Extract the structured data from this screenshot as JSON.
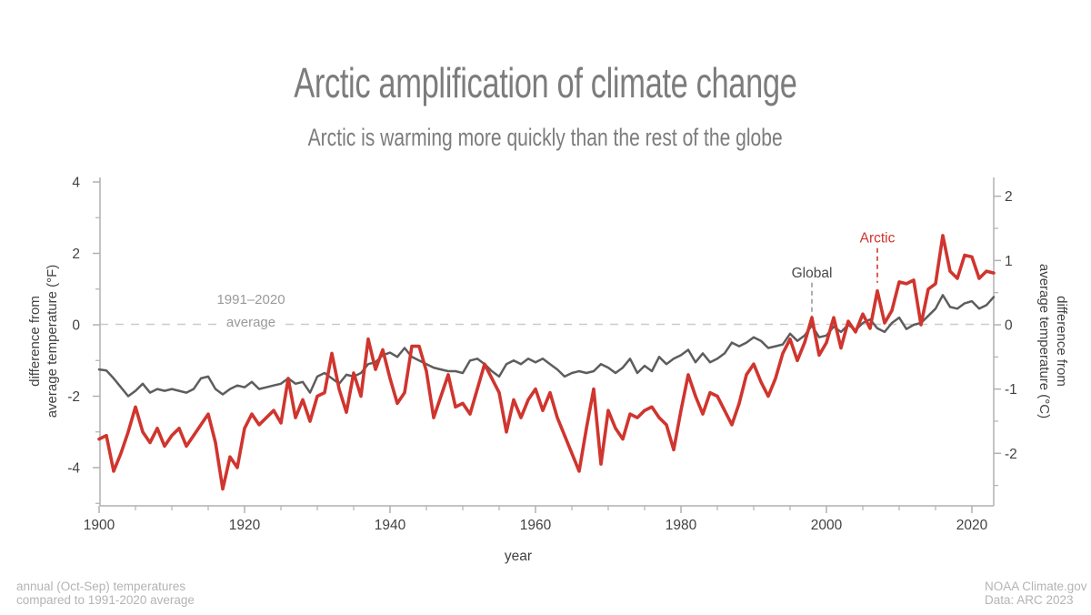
{
  "header": {
    "title": "Arctic amplification of climate change",
    "subtitle": "Arctic is warming more quickly than the rest of the globe"
  },
  "chart_data": {
    "type": "line",
    "title": "Arctic amplification of climate change",
    "subtitle": "Arctic is warming more quickly than the rest of the globe",
    "xlabel": "year",
    "xlim": [
      1900,
      2023
    ],
    "ylim_f": [
      -5.1,
      4.1
    ],
    "ylim_c": [
      -2.8,
      2.3
    ],
    "grid": false,
    "x_ticks": [
      1900,
      1920,
      1940,
      1960,
      1980,
      2000,
      2020
    ],
    "x_minor_step": 5,
    "y_axis_left": {
      "label_line1": "difference from",
      "label_line2": "average temperature (°F)",
      "ticks": [
        4,
        2,
        0,
        -2,
        -4
      ],
      "minor_ticks": [
        3,
        1,
        -1,
        -3,
        -5
      ],
      "unit": "°F"
    },
    "y_axis_right": {
      "label_line1": "difference from",
      "label_line2": "average temperature (°C)",
      "ticks": [
        2,
        1,
        0,
        -1,
        -2
      ],
      "minor_ticks": [
        1.5,
        0.5,
        -0.5,
        -1.5,
        -2.5
      ],
      "unit": "°C"
    },
    "baseline": {
      "value": 0,
      "label_line1": "1991–2020",
      "label_line2": "average"
    },
    "annotations": [
      {
        "label": "Global",
        "year": 1998,
        "text_color": "#4a4a4a",
        "line_color": "#999999"
      },
      {
        "label": "Arctic",
        "year": 2007,
        "text_color": "#d0352e",
        "line_color": "#d0352e"
      }
    ],
    "x": [
      1900,
      1901,
      1902,
      1903,
      1904,
      1905,
      1906,
      1907,
      1908,
      1909,
      1910,
      1911,
      1912,
      1913,
      1914,
      1915,
      1916,
      1917,
      1918,
      1919,
      1920,
      1921,
      1922,
      1923,
      1924,
      1925,
      1926,
      1927,
      1928,
      1929,
      1930,
      1931,
      1932,
      1933,
      1934,
      1935,
      1936,
      1937,
      1938,
      1939,
      1940,
      1941,
      1942,
      1943,
      1944,
      1945,
      1946,
      1947,
      1948,
      1949,
      1950,
      1951,
      1952,
      1953,
      1954,
      1955,
      1956,
      1957,
      1958,
      1959,
      1960,
      1961,
      1962,
      1963,
      1964,
      1965,
      1966,
      1967,
      1968,
      1969,
      1970,
      1971,
      1972,
      1973,
      1974,
      1975,
      1976,
      1977,
      1978,
      1979,
      1980,
      1981,
      1982,
      1983,
      1984,
      1985,
      1986,
      1987,
      1988,
      1989,
      1990,
      1991,
      1992,
      1993,
      1994,
      1995,
      1996,
      1997,
      1998,
      1999,
      2000,
      2001,
      2002,
      2003,
      2004,
      2005,
      2006,
      2007,
      2008,
      2009,
      2010,
      2011,
      2012,
      2013,
      2014,
      2015,
      2016,
      2017,
      2018,
      2019,
      2020,
      2021,
      2022,
      2023
    ],
    "series": [
      {
        "name": "Global",
        "color": "#5d5d5d",
        "units": "°F",
        "values": [
          -1.25,
          -1.28,
          -1.5,
          -1.75,
          -2.0,
          -1.85,
          -1.65,
          -1.9,
          -1.8,
          -1.85,
          -1.8,
          -1.85,
          -1.9,
          -1.8,
          -1.5,
          -1.45,
          -1.8,
          -1.95,
          -1.8,
          -1.7,
          -1.75,
          -1.6,
          -1.8,
          -1.75,
          -1.7,
          -1.65,
          -1.5,
          -1.65,
          -1.6,
          -1.9,
          -1.45,
          -1.35,
          -1.5,
          -1.65,
          -1.4,
          -1.45,
          -1.35,
          -1.1,
          -1.05,
          -0.85,
          -0.78,
          -0.9,
          -0.65,
          -0.9,
          -1.0,
          -1.1,
          -1.2,
          -1.25,
          -1.3,
          -1.3,
          -1.35,
          -1.0,
          -0.95,
          -1.1,
          -1.3,
          -1.45,
          -1.1,
          -1.0,
          -1.1,
          -0.95,
          -1.05,
          -0.95,
          -1.1,
          -1.25,
          -1.45,
          -1.35,
          -1.3,
          -1.35,
          -1.3,
          -1.1,
          -1.2,
          -1.35,
          -1.2,
          -0.95,
          -1.35,
          -1.15,
          -1.3,
          -0.9,
          -1.1,
          -0.95,
          -0.85,
          -0.7,
          -1.05,
          -0.8,
          -1.05,
          -0.95,
          -0.8,
          -0.5,
          -0.6,
          -0.5,
          -0.35,
          -0.45,
          -0.65,
          -0.6,
          -0.55,
          -0.25,
          -0.45,
          -0.3,
          -0.02,
          -0.35,
          -0.3,
          -0.05,
          -0.2,
          0.0,
          -0.15,
          0.05,
          0.15,
          -0.1,
          -0.2,
          0.05,
          0.2,
          -0.12,
          0.0,
          0.05,
          0.25,
          0.45,
          0.83,
          0.5,
          0.45,
          0.6,
          0.66,
          0.45,
          0.55,
          0.78
        ]
      },
      {
        "name": "Arctic",
        "color": "#d0352e",
        "units": "°F",
        "values": [
          -3.2,
          -3.1,
          -4.1,
          -3.6,
          -3.0,
          -2.3,
          -3.0,
          -3.3,
          -2.9,
          -3.4,
          -3.1,
          -2.9,
          -3.4,
          -3.1,
          -2.8,
          -2.5,
          -3.3,
          -4.6,
          -3.7,
          -4.0,
          -2.9,
          -2.5,
          -2.8,
          -2.6,
          -2.4,
          -2.75,
          -1.5,
          -2.6,
          -2.1,
          -2.7,
          -2.0,
          -1.9,
          -0.8,
          -1.8,
          -2.45,
          -1.35,
          -2.0,
          -0.4,
          -1.25,
          -0.7,
          -1.5,
          -2.2,
          -1.9,
          -0.6,
          -0.6,
          -1.3,
          -2.6,
          -2.0,
          -1.4,
          -2.3,
          -2.2,
          -2.5,
          -1.8,
          -1.1,
          -1.5,
          -1.9,
          -3.0,
          -2.1,
          -2.6,
          -2.1,
          -1.8,
          -2.4,
          -1.9,
          -2.6,
          -3.1,
          -3.6,
          -4.1,
          -2.9,
          -1.8,
          -3.9,
          -2.4,
          -2.9,
          -3.2,
          -2.5,
          -2.6,
          -2.4,
          -2.3,
          -2.6,
          -2.8,
          -3.5,
          -2.4,
          -1.4,
          -2.0,
          -2.5,
          -1.9,
          -2.0,
          -2.4,
          -2.8,
          -2.2,
          -1.4,
          -1.1,
          -1.6,
          -2.0,
          -1.5,
          -0.8,
          -0.4,
          -1.0,
          -0.5,
          0.2,
          -0.85,
          -0.5,
          0.2,
          -0.65,
          0.1,
          -0.2,
          0.3,
          -0.1,
          0.95,
          0.05,
          0.4,
          1.2,
          1.15,
          1.25,
          0.0,
          1.0,
          1.15,
          2.5,
          1.5,
          1.3,
          1.95,
          1.9,
          1.3,
          1.5,
          1.45
        ]
      }
    ],
    "colors": {
      "axis": "#b0b0b0",
      "tick_text": "#424242",
      "baseline_dash": "#cbcbcb",
      "title_text": "#7c7c7c"
    }
  },
  "footer": {
    "left_line1": "annual (Oct-Sep) temperatures",
    "left_line2": "compared to 1991-2020 average",
    "right_line1": "NOAA Climate.gov",
    "right_line2": "Data: ARC 2023"
  }
}
